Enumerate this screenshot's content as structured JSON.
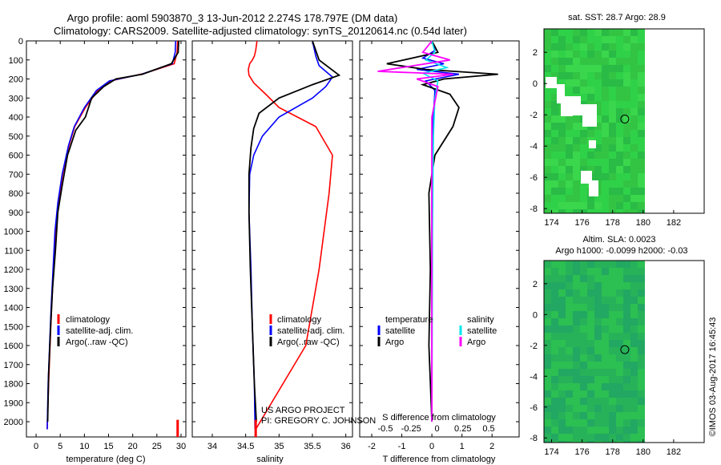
{
  "title_line1": "Argo profile: aoml 5903870_3 13-Jun-2012 2.274S 178.797E (DM data)",
  "title_line2": "Climatology: CARS2009. Satellite-adjusted climatology: synTS_20120614.nc (0.54d later)",
  "credit": "©IMOS 03-Aug-2017 16:45:43",
  "project_line1": "US ARGO PROJECT",
  "project_line2": "PI: GREGORY C. JOHNSON",
  "colors": {
    "climatology": "#ff0000",
    "satellite": "#0000ff",
    "argo": "#000000",
    "sal_sat": "#00e5ee",
    "sal_argo": "#ff00ff",
    "ocean": "#2ec43a",
    "land": "#ffffff"
  },
  "chart_data": [
    {
      "type": "line",
      "name": "temperature-profile",
      "xlabel": "temperature (deg C)",
      "ylabel": "",
      "xlim": [
        -2,
        31
      ],
      "ylim": [
        2080,
        0
      ],
      "xticks": [
        0,
        5,
        10,
        15,
        20,
        25,
        30
      ],
      "yticks": [
        0,
        100,
        200,
        300,
        400,
        500,
        600,
        700,
        800,
        900,
        1000,
        1100,
        1200,
        1300,
        1400,
        1500,
        1600,
        1700,
        1800,
        1900,
        2000
      ],
      "legend": [
        "climatology",
        "satellite-adj. clim.",
        "Argo(..raw -QC)"
      ],
      "series": [
        {
          "name": "climatology",
          "color": "#ff0000",
          "x": [
            29.3,
            29.2,
            28.6,
            22.5,
            15.5,
            12.8,
            10.2,
            8.0,
            6.8,
            5.5,
            4.6,
            4.0,
            3.6,
            3.2,
            2.9,
            2.6,
            2.3
          ],
          "y": [
            0,
            60,
            120,
            170,
            210,
            260,
            350,
            450,
            550,
            700,
            850,
            1000,
            1200,
            1400,
            1600,
            1800,
            2040
          ]
        },
        {
          "name": "satellite",
          "color": "#0000ff",
          "x": [
            28.9,
            28.8,
            28.2,
            21.8,
            15.2,
            12.5,
            10.0,
            7.9,
            6.7,
            5.4,
            4.5,
            3.9,
            3.5,
            3.1,
            2.8,
            2.5,
            2.3
          ],
          "y": [
            0,
            60,
            120,
            175,
            210,
            260,
            350,
            450,
            550,
            700,
            850,
            1000,
            1200,
            1400,
            1600,
            1800,
            2040
          ]
        },
        {
          "name": "argo",
          "color": "#000000",
          "x": [
            29.5,
            29.4,
            28.0,
            22.0,
            16.5,
            14.0,
            11.5,
            10.2,
            8.2,
            6.5,
            5.4,
            4.5,
            4.0,
            3.4,
            3.0,
            2.6,
            2.4
          ],
          "y": [
            0,
            60,
            120,
            175,
            200,
            240,
            300,
            400,
            470,
            600,
            760,
            900,
            1100,
            1300,
            1500,
            1750,
            2000
          ]
        }
      ]
    },
    {
      "type": "line",
      "name": "salinity-profile",
      "xlabel": "salinity",
      "xlim": [
        33.7,
        36.1
      ],
      "ylim": [
        2080,
        0
      ],
      "xticks": [
        34,
        34.5,
        35,
        35.5,
        36
      ],
      "legend": [
        "climatology",
        "satellite-adj. clim.",
        "Argo(..raw -QC)"
      ],
      "series": [
        {
          "name": "climatology",
          "color": "#ff0000",
          "x": [
            34.65,
            35.4,
            35.6,
            35.75,
            35.8,
            35.55,
            35.0,
            34.8,
            34.62,
            34.55,
            34.54,
            34.56,
            34.6,
            34.63,
            34.65,
            34.67
          ],
          "y": [
            2040,
            1600,
            1200,
            800,
            600,
            450,
            350,
            280,
            220,
            180,
            150,
            120,
            100,
            80,
            50,
            0
          ]
        },
        {
          "name": "satellite",
          "color": "#0000ff",
          "x": [
            34.64,
            34.63,
            34.6,
            34.58,
            34.55,
            34.56,
            34.62,
            34.75,
            35.0,
            35.5,
            35.7,
            35.8,
            35.6,
            35.55,
            35.5
          ],
          "y": [
            2040,
            1800,
            1500,
            1200,
            900,
            700,
            600,
            500,
            400,
            300,
            240,
            190,
            130,
            80,
            0
          ]
        },
        {
          "name": "argo",
          "color": "#000000",
          "x": [
            34.66,
            34.63,
            34.6,
            34.57,
            34.55,
            34.55,
            34.58,
            34.62,
            34.7,
            35.0,
            35.5,
            35.9,
            35.6,
            35.5
          ],
          "y": [
            2000,
            1800,
            1500,
            1200,
            900,
            700,
            560,
            460,
            380,
            300,
            230,
            180,
            100,
            0
          ]
        }
      ]
    },
    {
      "type": "line",
      "name": "difference-profile",
      "xlabel": "T difference from climatology",
      "xlabel_top": "S difference from climatology",
      "xlim": [
        -2.4,
        2.9
      ],
      "ylim": [
        2080,
        0
      ],
      "xticks": [
        -2,
        -1,
        0,
        1,
        2
      ],
      "xticks_top": [
        -0.5,
        -0.25,
        0,
        0.25,
        0.5
      ],
      "legend": [
        "temperature",
        "satellite",
        "Argo",
        "salinity",
        "satellite",
        "Argo"
      ],
      "series": [
        {
          "name": "temperature-satellite",
          "color": "#0000ff",
          "x": [
            0,
            0.1,
            -0.3,
            0.4,
            -0.5,
            0.9,
            -0.2,
            0.1,
            0.05,
            0,
            0,
            0
          ],
          "y": [
            0,
            50,
            90,
            120,
            150,
            175,
            210,
            260,
            400,
            800,
            1400,
            2000
          ]
        },
        {
          "name": "temperature-argo",
          "color": "#000000",
          "x": [
            0,
            0.2,
            -1.5,
            -0.2,
            2.2,
            0.4,
            -0.3,
            0.6,
            0.9,
            0.7,
            0.1,
            -0.1,
            -0.05,
            -0.1,
            0
          ],
          "y": [
            0,
            60,
            120,
            150,
            175,
            200,
            230,
            280,
            350,
            450,
            600,
            800,
            1200,
            1600,
            2000
          ]
        },
        {
          "name": "salinity-satellite",
          "color": "#00e5ee",
          "x": [
            0,
            0.1,
            -0.2,
            0.5,
            -0.3,
            0.2,
            0.1,
            0.05,
            0.02,
            0
          ],
          "y": [
            0,
            60,
            100,
            140,
            170,
            210,
            300,
            500,
            1000,
            2000
          ]
        },
        {
          "name": "salinity-argo",
          "color": "#ff00ff",
          "x": [
            0,
            -0.3,
            0.6,
            -1.8,
            0.7,
            -0.5,
            0.2,
            0,
            0
          ],
          "y": [
            0,
            60,
            100,
            160,
            175,
            200,
            240,
            400,
            2000
          ]
        }
      ]
    },
    {
      "type": "heatmap",
      "name": "sst-map",
      "title": "sat. SST: 28.7  Argo: 28.9",
      "xlim": [
        173.5,
        184
      ],
      "ylim": [
        -8.3,
        3.5
      ],
      "xticks": [
        174,
        176,
        178,
        180,
        182
      ],
      "yticks": [
        2,
        0,
        -2,
        -4,
        -6,
        -8
      ],
      "float_position": {
        "lon": 178.797,
        "lat": -2.274
      }
    },
    {
      "type": "heatmap",
      "name": "sla-map",
      "title_line1": "Altim. SLA: 0.0023",
      "title_line2": "Argo h1000: -0.0099  h2000: -0.03",
      "xlim": [
        173.5,
        184
      ],
      "ylim": [
        -8.3,
        3.5
      ],
      "xticks": [
        174,
        176,
        178,
        180,
        182
      ],
      "yticks": [
        2,
        0,
        -2,
        -4,
        -6,
        -8
      ],
      "float_position": {
        "lon": 178.797,
        "lat": -2.274
      }
    }
  ]
}
